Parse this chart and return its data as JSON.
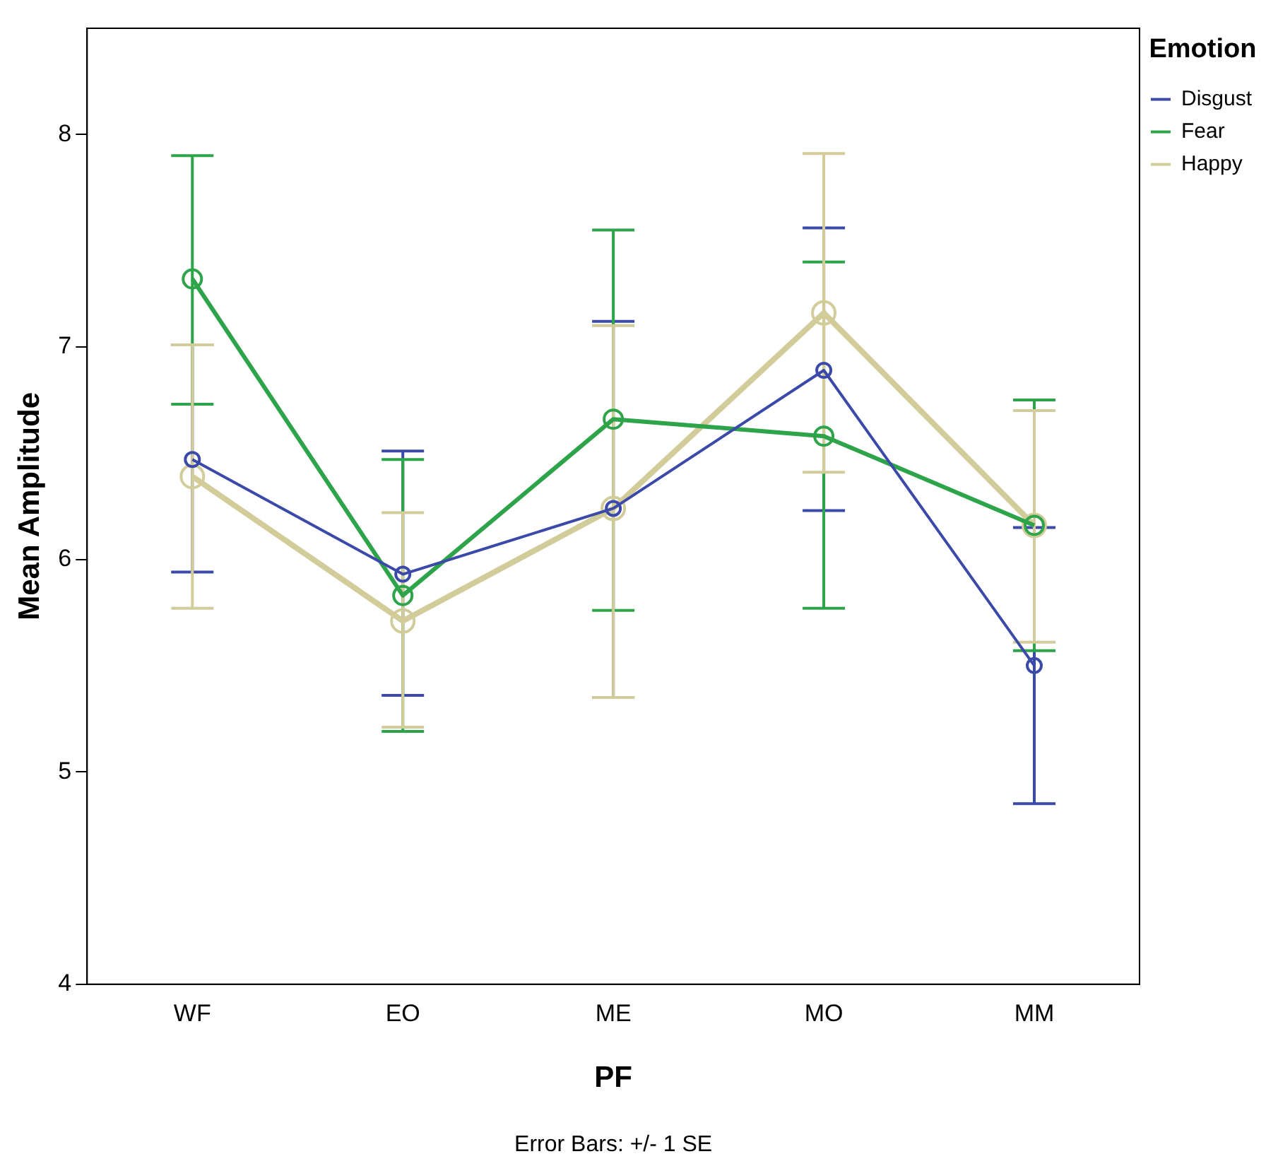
{
  "chart_data": {
    "type": "line",
    "xlabel": "PF",
    "ylabel": "Mean Amplitude",
    "legend_title": "Emotion",
    "legend": "top right",
    "marker": "circle",
    "grid": false,
    "categories": [
      "WF",
      "EO",
      "ME",
      "MO",
      "MM"
    ],
    "ylim": [
      4,
      8.5
    ],
    "yticks": [
      4,
      5,
      6,
      7,
      8
    ],
    "series": [
      {
        "name": "Disgust",
        "color": "#3b4aa8",
        "values": [
          6.47,
          5.93,
          6.24,
          6.89,
          5.5
        ],
        "errors": [
          [
            5.94,
            7.01
          ],
          [
            5.36,
            6.51
          ],
          [
            5.35,
            7.12
          ],
          [
            6.23,
            7.56
          ],
          [
            4.85,
            6.15
          ]
        ]
      },
      {
        "name": "Fear",
        "color": "#2ea44a",
        "values": [
          7.32,
          5.83,
          6.66,
          6.58,
          6.16
        ],
        "errors": [
          [
            6.73,
            7.9
          ],
          [
            5.19,
            6.47
          ],
          [
            5.76,
            7.55
          ],
          [
            5.77,
            7.4
          ],
          [
            5.57,
            6.75
          ]
        ]
      },
      {
        "name": "Happy",
        "color": "#d2cc9a",
        "values": [
          6.39,
          5.71,
          6.24,
          7.16,
          6.16
        ],
        "errors": [
          [
            5.77,
            7.01
          ],
          [
            5.21,
            6.22
          ],
          [
            5.35,
            7.1
          ],
          [
            6.41,
            7.91
          ],
          [
            5.61,
            6.7
          ]
        ]
      }
    ],
    "annotations": [
      "Error Bars: +/- 1 SE"
    ]
  }
}
